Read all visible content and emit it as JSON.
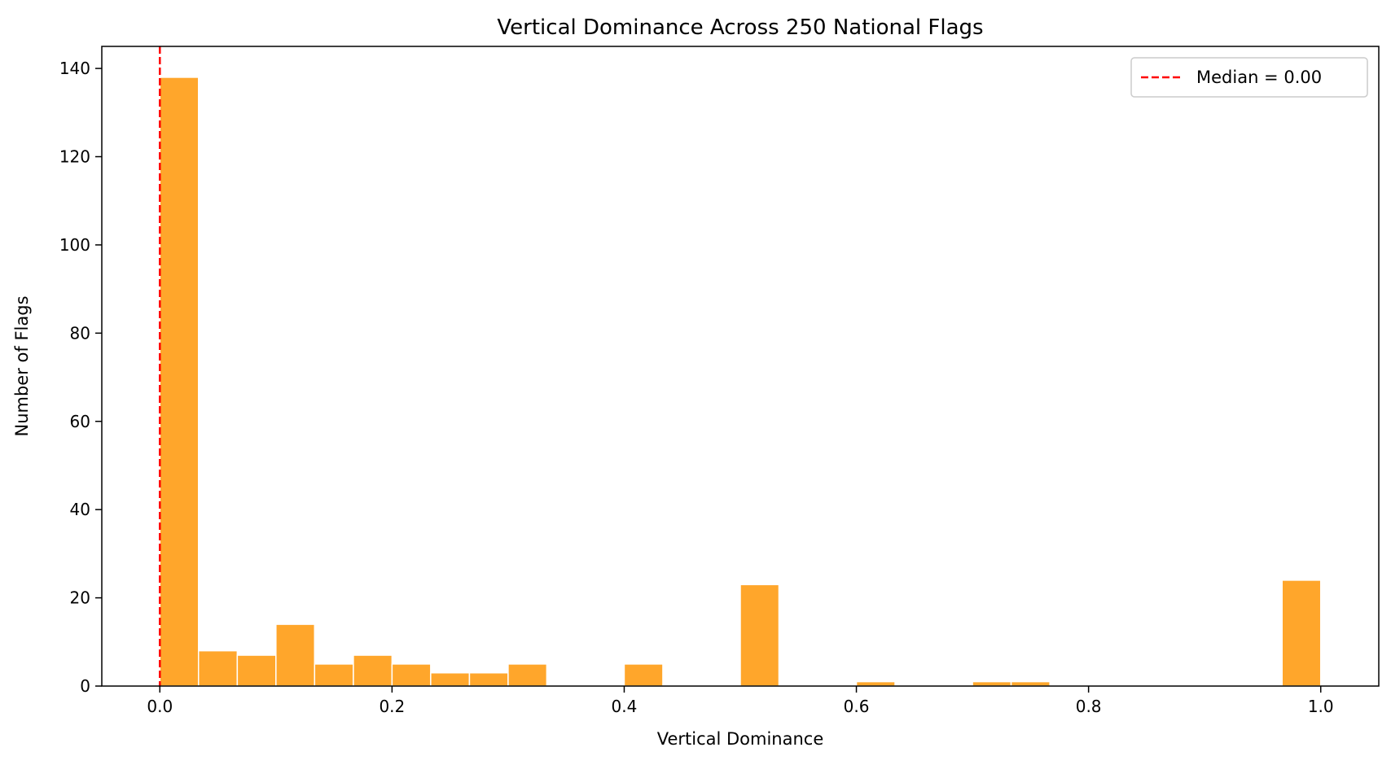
{
  "chart_data": {
    "type": "bar",
    "title": "Vertical Dominance Across 250 National Flags",
    "xlabel": "Vertical Dominance",
    "ylabel": "Number of Flags",
    "xlim": [
      -0.05,
      1.05
    ],
    "ylim": [
      0,
      145
    ],
    "x_ticks": [
      0.0,
      0.2,
      0.4,
      0.6,
      0.8,
      1.0
    ],
    "x_tick_labels": [
      "0.0",
      "0.2",
      "0.4",
      "0.6",
      "0.8",
      "1.0"
    ],
    "y_ticks": [
      0,
      20,
      40,
      60,
      80,
      100,
      120,
      140
    ],
    "y_tick_labels": [
      "0",
      "20",
      "40",
      "60",
      "80",
      "100",
      "120",
      "140"
    ],
    "bin_edges": [
      0.0,
      0.0333,
      0.0667,
      0.1,
      0.1333,
      0.1667,
      0.2,
      0.2333,
      0.2667,
      0.3,
      0.3333,
      0.3667,
      0.4,
      0.4333,
      0.4667,
      0.5,
      0.5333,
      0.5667,
      0.6,
      0.6333,
      0.6667,
      0.7,
      0.7333,
      0.7667,
      0.8,
      0.8333,
      0.8667,
      0.9,
      0.9333,
      0.9667,
      1.0
    ],
    "counts": [
      138,
      8,
      7,
      14,
      5,
      7,
      5,
      3,
      3,
      5,
      0,
      0,
      5,
      0,
      0,
      23,
      0,
      0,
      1,
      0,
      0,
      1,
      1,
      0,
      0,
      0,
      0,
      0,
      0,
      24
    ],
    "bar_color": "#ffa62b",
    "median": {
      "value": 0.0,
      "color": "#ff0000",
      "label": "Median = 0.00"
    },
    "legend": {
      "location": "top-right"
    },
    "grid": false
  }
}
